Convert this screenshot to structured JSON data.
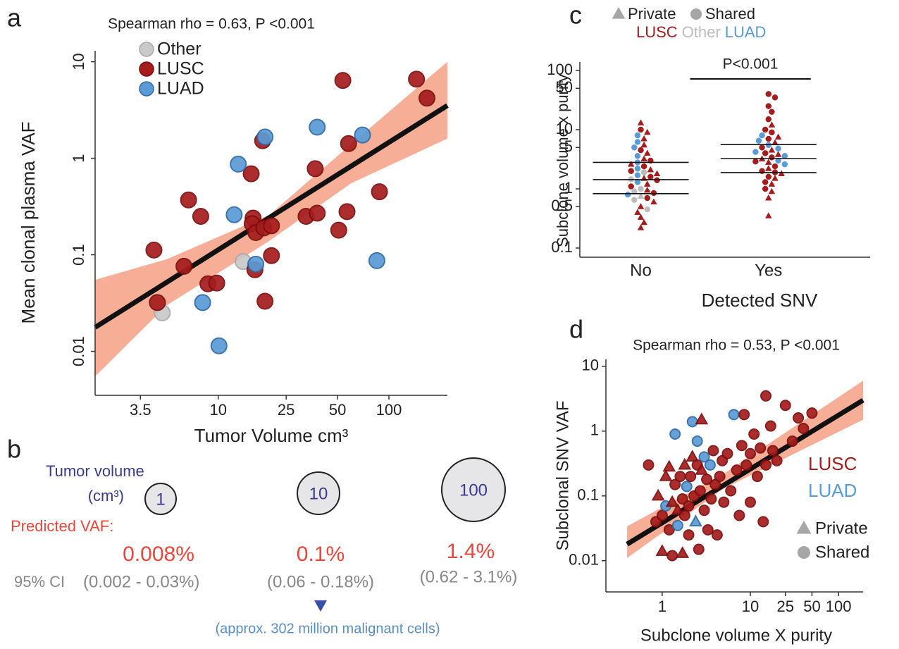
{
  "chart_data": [
    {
      "panel": "a",
      "type": "scatter",
      "annotation": "Spearman rho = 0.63, P <0.001",
      "x_label": "Tumor Volume cm³",
      "y_label": "Mean clonal plasma VAF",
      "log_x": true,
      "log_y": true,
      "xlim": [
        1.9,
        220
      ],
      "ylim": [
        0.0035,
        13
      ],
      "xticks": [
        3.5,
        10,
        25,
        50,
        100
      ],
      "yticks": [
        0.01,
        0.1,
        1,
        10
      ],
      "legend": "top-left",
      "series": [
        {
          "name": "Other",
          "color": "#c9c9c9",
          "edge": "#a9a9a9",
          "x": [
            4.7,
            14
          ],
          "y": [
            0.025,
            0.085
          ]
        },
        {
          "name": "LUSC",
          "color": "#a51c1c",
          "edge": "#7c0d0d",
          "x": [
            4.2,
            4.4,
            6.3,
            6.7,
            7.9,
            8.7,
            9.8,
            16,
            15.6,
            15.8,
            16.6,
            16.4,
            18.2,
            18.5,
            18.8,
            20.5,
            20.5,
            32.7,
            37,
            38,
            50.8,
            53.7,
            56.8,
            58,
            88,
            145,
            167
          ],
          "y": [
            0.112,
            0.032,
            0.076,
            0.37,
            0.25,
            0.05,
            0.051,
            0.24,
            0.69,
            0.21,
            0.17,
            0.07,
            1.52,
            0.19,
            0.033,
            0.2,
            0.098,
            0.25,
            0.78,
            0.27,
            0.18,
            6.4,
            0.28,
            1.42,
            0.45,
            6.6,
            4.2
          ]
        },
        {
          "name": "LUAD",
          "color": "#5a9bd5",
          "edge": "#2e6aa6",
          "x": [
            8.1,
            10.1,
            12.4,
            13.1,
            16.6,
            18.8,
            38,
            70,
            85
          ],
          "y": [
            0.032,
            0.0114,
            0.26,
            0.87,
            0.08,
            1.66,
            2.1,
            1.74,
            0.087
          ]
        }
      ],
      "fit": {
        "color": "#111111",
        "x": [
          1.9,
          220
        ],
        "y": [
          0.0177,
          3.52
        ]
      },
      "band": {
        "color": "#f6a58c",
        "x": [
          1.9,
          5,
          20,
          60,
          220
        ],
        "lower": [
          0.0055,
          0.03,
          0.14,
          0.55,
          1.6
        ],
        "upper": [
          0.055,
          0.09,
          0.26,
          1.4,
          10
        ]
      }
    },
    {
      "panel": "c",
      "type": "beeswarm",
      "annotation": "P<0.001",
      "x_label": "Detected SNV",
      "y_label": "Subclone volume x purity",
      "log_y": true,
      "ylim": [
        0.07,
        139
      ],
      "yticks": [
        0.1,
        0.5,
        1,
        5,
        10,
        50,
        100
      ],
      "categories": [
        "No",
        "Yes"
      ],
      "shape_legend": [
        {
          "name": "Private",
          "shape": "triangle",
          "color": "#a6a6a6"
        },
        {
          "name": "Shared",
          "shape": "circle",
          "color": "#a6a6a6"
        }
      ],
      "color_legend": [
        {
          "name": "LUSC",
          "color": "#a51c1c"
        },
        {
          "name": "Other",
          "color": "#bdbdbd"
        },
        {
          "name": "LUAD",
          "color": "#5a9bd5"
        }
      ],
      "groups": [
        {
          "values": [
            13,
            10,
            9,
            8,
            7,
            6.2,
            5.5,
            5,
            4.5,
            4,
            3.6,
            3.2,
            3,
            2.8,
            2.6,
            2.4,
            2.2,
            2.1,
            2,
            1.9,
            1.8,
            1.7,
            1.6,
            1.5,
            1.45,
            1.4,
            1.3,
            1.2,
            1.1,
            1,
            0.95,
            0.9,
            0.85,
            0.8,
            0.75,
            0.7,
            0.65,
            0.6,
            0.5,
            0.45,
            0.4,
            0.33,
            0.27,
            0.22
          ],
          "subtype": [
            "LUSC",
            "LUSC",
            "LUSC",
            "LUAD",
            "LUSC",
            "LUAD",
            "LUSC",
            "LUAD",
            "LUSC",
            "LUSC",
            "LUAD",
            "LUSC",
            "LUSC",
            "LUAD",
            "LUSC",
            "LUSC",
            "LUAD",
            "LUSC",
            "LUSC",
            "Other",
            "LUSC",
            "LUAD",
            "LUSC",
            "LUSC",
            "Other",
            "LUSC",
            "LUAD",
            "LUSC",
            "LUSC",
            "Other",
            "LUSC",
            "Other",
            "LUSC",
            "LUAD",
            "Other",
            "LUSC",
            "Other",
            "LUSC",
            "LUSC",
            "Other",
            "LUSC",
            "LUSC",
            "LUSC",
            "LUSC"
          ],
          "shape": [
            "Private",
            "Shared",
            "Private",
            "Shared",
            "Private",
            "Shared",
            "Private",
            "Shared",
            "Shared",
            "Private",
            "Shared",
            "Private",
            "Shared",
            "Shared",
            "Private",
            "Shared",
            "Shared",
            "Private",
            "Shared",
            "Shared",
            "Private",
            "Shared",
            "Shared",
            "Private",
            "Shared",
            "Shared",
            "Shared",
            "Private",
            "Shared",
            "Shared",
            "Private",
            "Shared",
            "Shared",
            "Shared",
            "Private",
            "Shared",
            "Shared",
            "Private",
            "Private",
            "Shared",
            "Private",
            "Private",
            "Private",
            "Private"
          ],
          "quartiles": [
            0.83,
            1.43,
            2.8
          ]
        },
        {
          "values": [
            40,
            35,
            25,
            20,
            15,
            12,
            10,
            9,
            8,
            7.5,
            7,
            6.5,
            6,
            5.5,
            5,
            4.8,
            4.5,
            4.2,
            4,
            3.8,
            3.6,
            3.4,
            3.2,
            3,
            2.9,
            2.8,
            2.6,
            2.4,
            2.2,
            2,
            1.9,
            1.8,
            1.6,
            1.5,
            1.3,
            1.2,
            1,
            0.9,
            0.7,
            0.35
          ],
          "subtype": [
            "LUSC",
            "LUSC",
            "LUSC",
            "LUSC",
            "LUSC",
            "LUSC",
            "LUSC",
            "LUSC",
            "LUAD",
            "LUSC",
            "LUSC",
            "LUAD",
            "LUSC",
            "LUAD",
            "LUSC",
            "LUAD",
            "LUSC",
            "LUAD",
            "LUSC",
            "LUSC",
            "LUAD",
            "LUSC",
            "LUSC",
            "LUAD",
            "LUSC",
            "LUSC",
            "LUAD",
            "LUSC",
            "LUSC",
            "LUSC",
            "LUSC",
            "LUSC",
            "LUSC",
            "LUSC",
            "LUSC",
            "LUSC",
            "LUSC",
            "LUSC",
            "LUSC",
            "LUSC"
          ],
          "shape": [
            "Shared",
            "Shared",
            "Shared",
            "Shared",
            "Shared",
            "Private",
            "Shared",
            "Shared",
            "Shared",
            "Private",
            "Shared",
            "Shared",
            "Private",
            "Shared",
            "Shared",
            "Shared",
            "Private",
            "Shared",
            "Shared",
            "Private",
            "Shared",
            "Shared",
            "Private",
            "Shared",
            "Shared",
            "Private",
            "Shared",
            "Shared",
            "Private",
            "Shared",
            "Shared",
            "Private",
            "Shared",
            "Private",
            "Shared",
            "Private",
            "Shared",
            "Private",
            "Private",
            "Private"
          ],
          "quartiles": [
            1.88,
            3.25,
            5.6
          ]
        }
      ]
    },
    {
      "panel": "d",
      "type": "scatter",
      "annotation": "Spearman rho = 0.53, P <0.001",
      "x_label": "Subclone volume X purity",
      "y_label": "Subclonal SNV VAF",
      "log_x": true,
      "log_y": true,
      "xlim": [
        0.23,
        190
      ],
      "ylim": [
        0.0033,
        12.8
      ],
      "xticks": [
        1,
        10,
        25,
        50,
        100
      ],
      "yticks": [
        0.01,
        0.1,
        1,
        10
      ],
      "legend": "right",
      "color_legend": [
        {
          "name": "LUSC",
          "color": "#a51c1c",
          "edge": "#7c0d0d"
        },
        {
          "name": "LUAD",
          "color": "#5a9bd5",
          "edge": "#2e6aa6"
        }
      ],
      "shape_legend": [
        {
          "name": "Private",
          "shape": "triangle",
          "color": "#a6a6a6"
        },
        {
          "name": "Shared",
          "shape": "circle",
          "color": "#a6a6a6"
        }
      ],
      "points": {
        "x": [
          0.7,
          0.85,
          0.9,
          1.0,
          1.0,
          1.1,
          1.1,
          1.2,
          1.2,
          1.3,
          1.3,
          1.4,
          1.4,
          1.5,
          1.5,
          1.6,
          1.7,
          1.7,
          1.8,
          1.8,
          1.9,
          2.0,
          2.0,
          2.1,
          2.2,
          2.2,
          2.3,
          2.4,
          2.5,
          2.5,
          2.6,
          2.7,
          2.8,
          2.8,
          3.0,
          3.0,
          3.2,
          3.3,
          3.5,
          3.6,
          3.8,
          4.0,
          4.2,
          4.5,
          4.8,
          5.0,
          5.5,
          6.0,
          6.5,
          7.0,
          7.5,
          8.0,
          8.5,
          9.0,
          10,
          10,
          11,
          12,
          13,
          14,
          15,
          15,
          17,
          18,
          20,
          25,
          30,
          35,
          40,
          50
        ],
        "y": [
          0.3,
          0.04,
          0.1,
          0.014,
          0.05,
          0.07,
          0.2,
          0.28,
          0.03,
          0.08,
          0.012,
          0.15,
          0.9,
          0.06,
          0.035,
          0.2,
          0.09,
          0.013,
          0.3,
          0.05,
          0.14,
          0.07,
          0.025,
          0.2,
          1.4,
          0.4,
          0.1,
          0.04,
          0.3,
          0.7,
          0.015,
          0.12,
          0.25,
          1.5,
          0.06,
          0.4,
          0.18,
          0.03,
          0.3,
          0.09,
          0.5,
          0.15,
          0.025,
          0.2,
          0.35,
          0.08,
          0.45,
          0.12,
          1.8,
          0.25,
          0.05,
          0.6,
          1.8,
          0.3,
          0.08,
          0.45,
          0.9,
          0.2,
          0.55,
          0.04,
          3.5,
          0.3,
          1.2,
          0.5,
          0.35,
          2.5,
          0.7,
          1.6,
          1.1,
          1.9
        ],
        "subtype": [
          "LUSC",
          "LUSC",
          "LUSC",
          "LUSC",
          "LUSC",
          "LUAD",
          "LUSC",
          "LUSC",
          "LUSC",
          "LUSC",
          "LUSC",
          "LUSC",
          "LUAD",
          "LUSC",
          "LUAD",
          "LUSC",
          "LUSC",
          "LUSC",
          "LUSC",
          "LUSC",
          "LUAD",
          "LUSC",
          "LUSC",
          "LUSC",
          "LUAD",
          "LUSC",
          "LUSC",
          "LUAD",
          "LUSC",
          "LUAD",
          "LUSC",
          "LUSC",
          "LUSC",
          "LUSC",
          "LUSC",
          "LUAD",
          "LUSC",
          "LUSC",
          "LUAD",
          "LUSC",
          "LUSC",
          "LUSC",
          "LUSC",
          "LUSC",
          "LUSC",
          "LUSC",
          "LUSC",
          "LUSC",
          "LUAD",
          "LUSC",
          "LUSC",
          "LUSC",
          "LUSC",
          "LUSC",
          "LUSC",
          "LUSC",
          "LUSC",
          "LUSC",
          "LUSC",
          "LUSC",
          "LUSC",
          "LUSC",
          "LUSC",
          "LUSC",
          "LUSC",
          "LUSC",
          "LUSC",
          "LUSC",
          "LUSC",
          "LUSC"
        ],
        "shape": [
          "Shared",
          "Shared",
          "Private",
          "Private",
          "Shared",
          "Shared",
          "Private",
          "Private",
          "Shared",
          "Private",
          "Shared",
          "Shared",
          "Shared",
          "Private",
          "Shared",
          "Shared",
          "Shared",
          "Private",
          "Private",
          "Shared",
          "Shared",
          "Shared",
          "Shared",
          "Shared",
          "Shared",
          "Private",
          "Shared",
          "Private",
          "Shared",
          "Shared",
          "Shared",
          "Shared",
          "Private",
          "Private",
          "Shared",
          "Shared",
          "Shared",
          "Shared",
          "Shared",
          "Shared",
          "Shared",
          "Shared",
          "Shared",
          "Shared",
          "Shared",
          "Shared",
          "Shared",
          "Shared",
          "Shared",
          "Shared",
          "Shared",
          "Shared",
          "Shared",
          "Shared",
          "Shared",
          "Shared",
          "Shared",
          "Shared",
          "Shared",
          "Shared",
          "Shared",
          "Shared",
          "Shared",
          "Shared",
          "Shared",
          "Shared",
          "Shared",
          "Shared",
          "Shared",
          "Shared"
        ]
      },
      "fit": {
        "color": "#111111",
        "x": [
          0.4,
          190
        ],
        "y": [
          0.018,
          3.0
        ]
      },
      "band": {
        "color": "#f6a58c",
        "x": [
          0.4,
          5,
          190
        ],
        "lower": [
          0.011,
          0.13,
          1.5
        ],
        "upper": [
          0.034,
          0.22,
          6
        ]
      }
    }
  ],
  "panel_labels": [
    "a",
    "b",
    "c",
    "d"
  ],
  "panel_b": {
    "tumor_volume": "Tumor volume",
    "unit": "(cm³)",
    "volumes": [
      "1",
      "10",
      "100"
    ],
    "predicted": "Predicted VAF:",
    "vafs": [
      "0.008%",
      "0.1%",
      "1.4%"
    ],
    "ci_label": "95% CI",
    "cis": [
      "(0.002 - 0.03%)",
      "(0.06 - 0.18%)",
      "(0.62 - 3.1%)"
    ],
    "cells": "(approx. 302 million malignant cells)"
  }
}
